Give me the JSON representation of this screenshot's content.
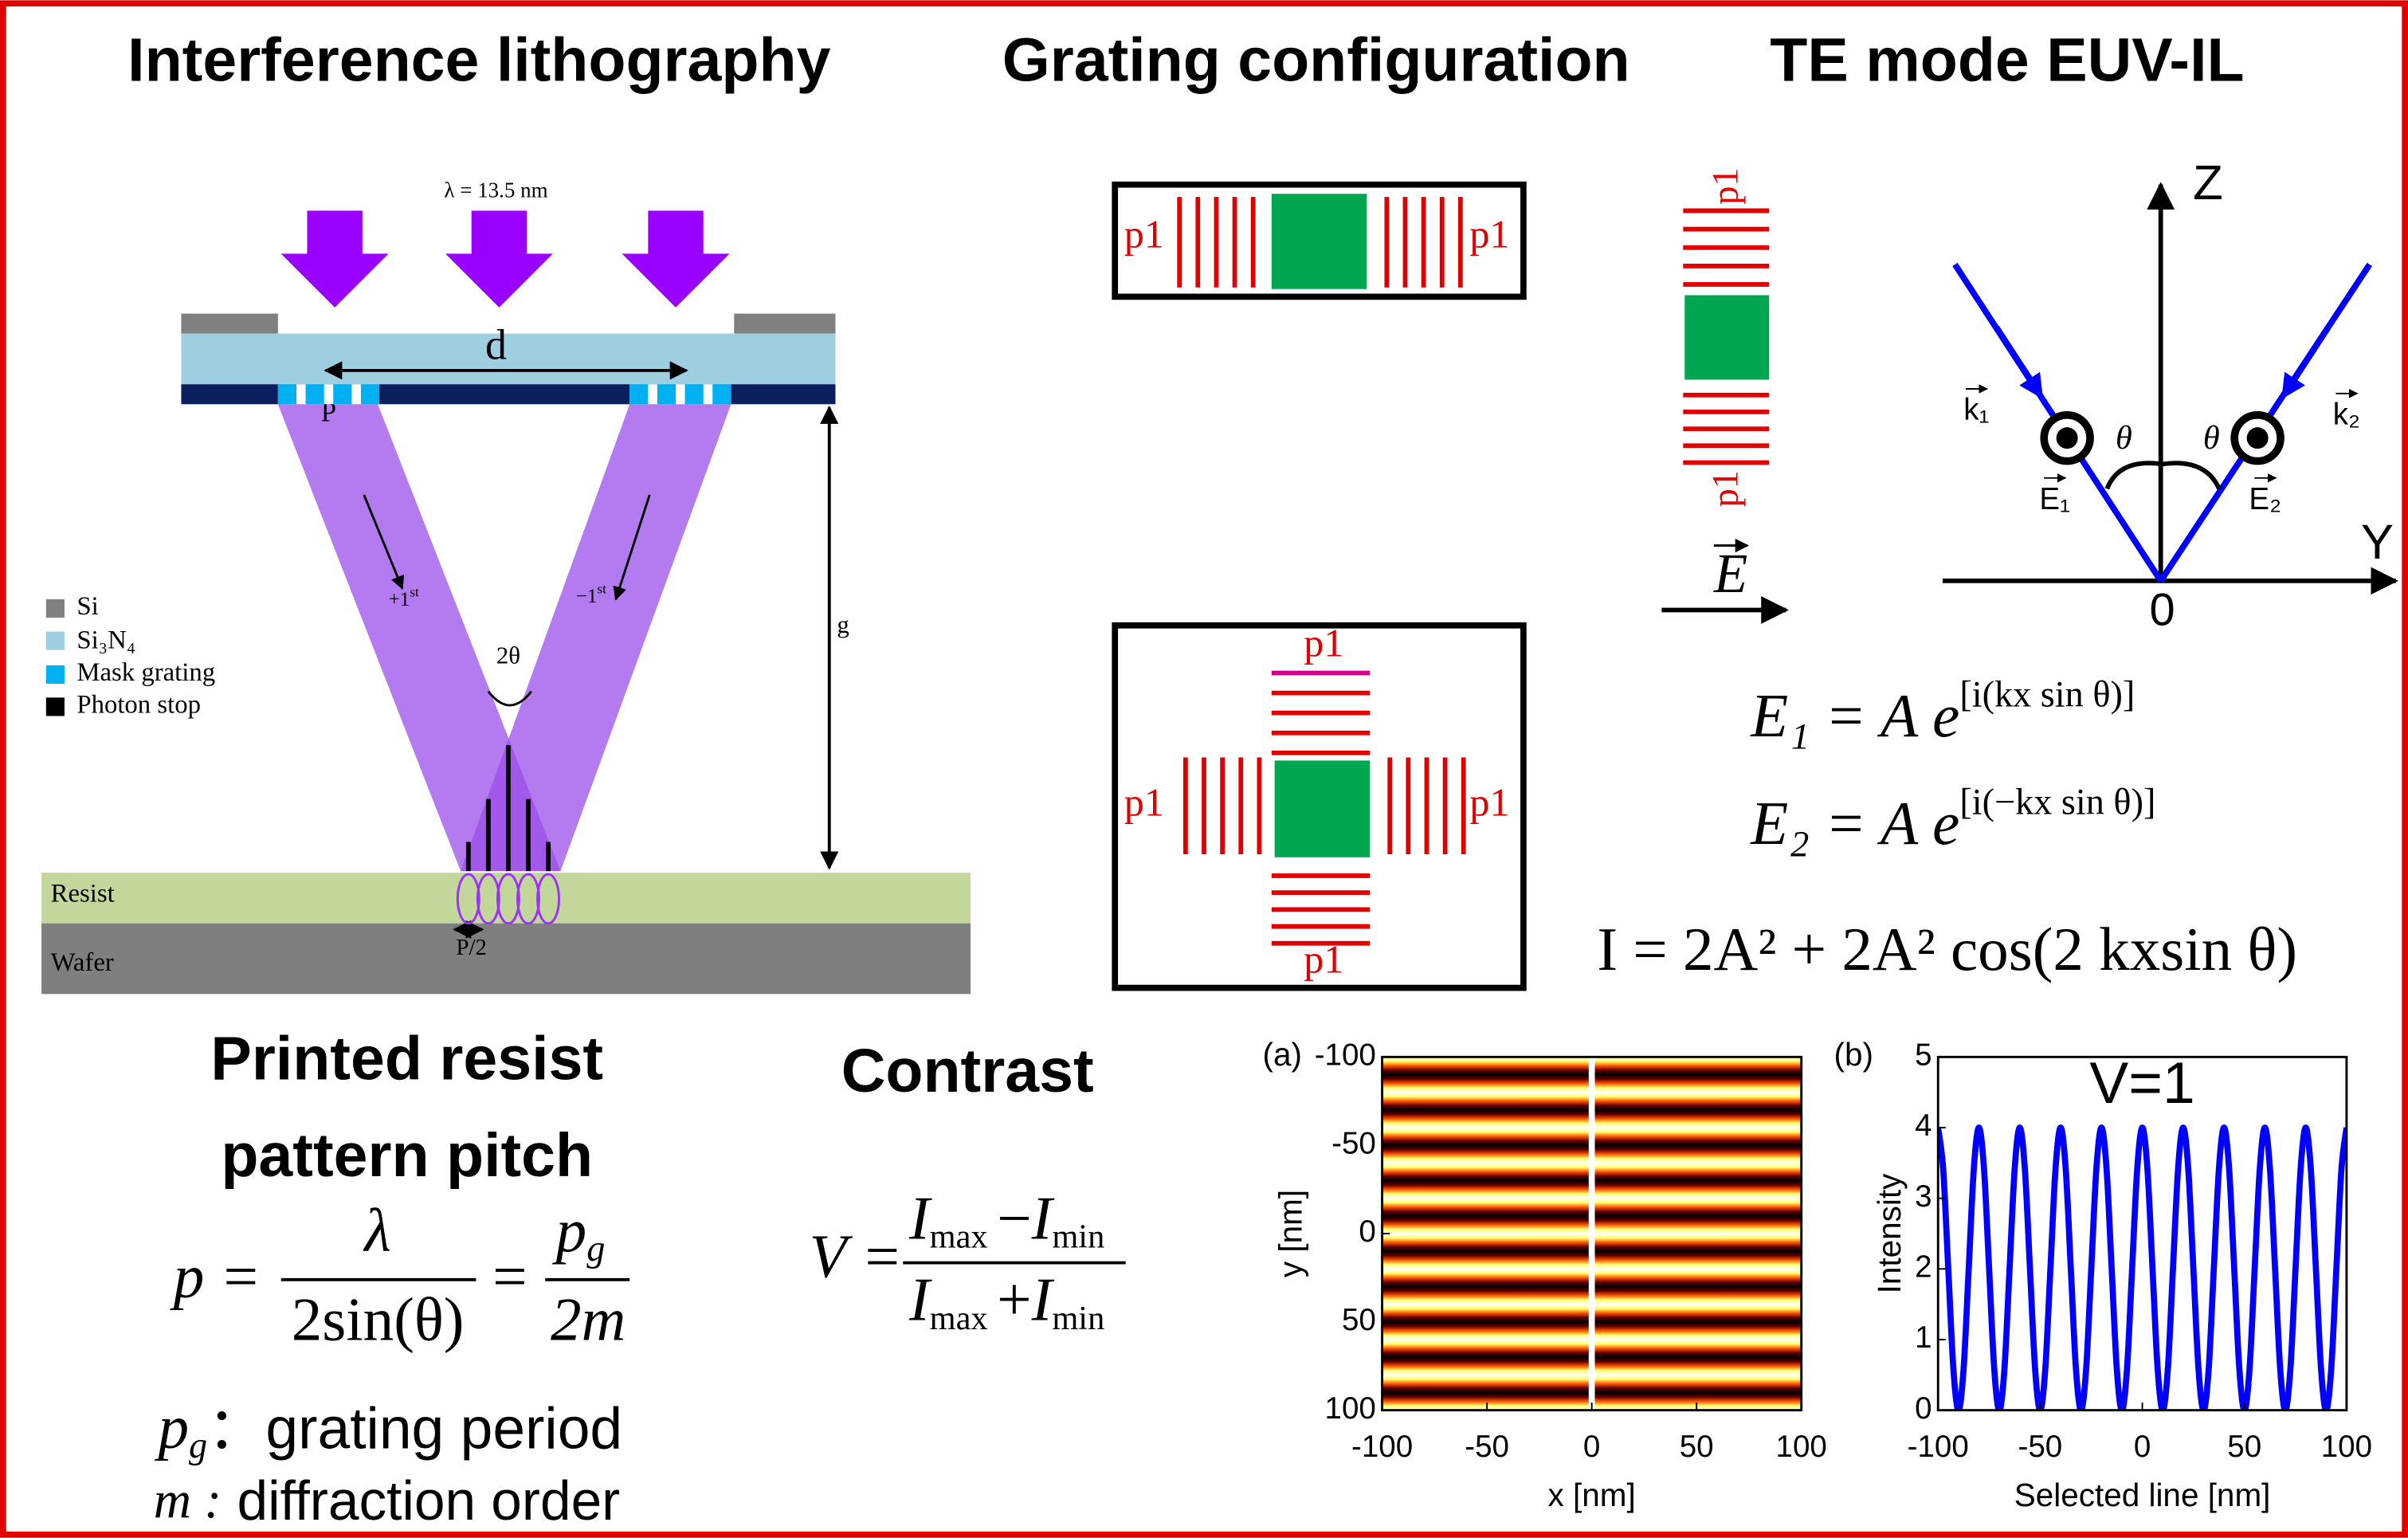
{
  "titles": [
    "Interference lithography",
    "Grating configuration",
    "TE mode EUV-IL"
  ],
  "lithography": {
    "wavelength": "λ = 13.5 nm",
    "mask_spacing": "d",
    "mask_pitch": "P",
    "gap": "g",
    "angle": "2θ",
    "orders": [
      {
        "base": "+1",
        "sup": "st"
      },
      {
        "base": "−1",
        "sup": "st"
      }
    ],
    "half_pitch": "P/2",
    "legend": [
      "Si",
      "Si₃N₄",
      "Mask grating",
      "Photon stop"
    ],
    "layers": [
      "Resist",
      "Wafer"
    ]
  },
  "grating_configuration": {
    "line_config": {
      "labels": [
        "p1",
        "p1"
      ]
    },
    "vertical_config": {
      "labels": [
        "p1",
        "p1"
      ]
    },
    "field": "E",
    "cross_config": {
      "labels": [
        "p1",
        "p1",
        "p1",
        "p1"
      ]
    }
  },
  "te_mode": {
    "axes": [
      "Z",
      "Y"
    ],
    "origin": "0",
    "wave_vectors": [
      "k₁",
      "k₂"
    ],
    "fields": [
      "E₁",
      "E₂"
    ],
    "angles": [
      "θ",
      "θ"
    ],
    "equations": [
      {
        "base": "E₁ = A e",
        "sup": "[i(kx sin θ)]"
      },
      {
        "base": "E₂ = A e",
        "sup": "[i(−kx sin θ)]"
      },
      {
        "base": "I = 2A² + 2A² cos(2 kxsin θ)"
      }
    ]
  },
  "pitch": {
    "title": [
      "Printed resist",
      "pattern pitch"
    ],
    "formula": {
      "lhs": "p =",
      "num1": "λ",
      "den1": "2sin(θ)",
      "eq": "=",
      "num2": {
        "base": "p",
        "sub": "g"
      },
      "den2": "2m"
    },
    "definitions": [
      {
        "symbol": "p",
        "sub": "g",
        "text": "：grating period"
      },
      {
        "symbol": "m :",
        "text": " diffraction order"
      }
    ]
  },
  "contrast": {
    "title": "Contrast",
    "formula": {
      "lhs": "V =",
      "numerator": [
        "I",
        "max",
        "−",
        "I",
        "min"
      ],
      "denominator": [
        "I",
        "max",
        "+",
        "I",
        "min"
      ]
    }
  },
  "chart_data": [
    {
      "type": "heatmap",
      "panel": "(a)",
      "xlabel": "x [nm]",
      "ylabel": "y [nm]",
      "xlim": [
        -100,
        100
      ],
      "ylim": [
        -100,
        100
      ],
      "y_inverted": true,
      "xticks": [
        -100,
        -50,
        0,
        50,
        100
      ],
      "yticks": [
        -100,
        -50,
        0,
        50,
        100
      ],
      "colormap": "hot"
    },
    {
      "type": "line",
      "panel": "(b)",
      "annotation": "V=1",
      "xlabel": "Selected line [nm]",
      "ylabel": "Intensity",
      "xlim": [
        -100,
        100
      ],
      "ylim": [
        0,
        5
      ],
      "xticks": [
        -100,
        -50,
        0,
        50,
        100
      ],
      "yticks": [
        0,
        1,
        2,
        3,
        4,
        5
      ],
      "x": [
        -100,
        -97.5,
        -95,
        -92.5,
        -90,
        -87.5,
        -85,
        -82.5,
        -80,
        -77.5,
        -75,
        -72.5,
        -70,
        -67.5,
        -65,
        -62.5,
        -60,
        -57.5,
        -55,
        -52.5,
        -50,
        -47.5,
        -45,
        -42.5,
        -40,
        -37.5,
        -35,
        -32.5,
        -30,
        -27.5,
        -25,
        -22.5,
        -20,
        -17.5,
        -15,
        -12.5,
        -10,
        -7.5,
        -5,
        -2.5,
        0,
        2.5,
        5,
        7.5,
        10,
        12.5,
        15,
        17.5,
        20,
        22.5,
        25,
        27.5,
        30,
        32.5,
        35,
        37.5,
        40,
        42.5,
        45,
        47.5,
        50,
        52.5,
        55,
        57.5,
        60,
        62.5,
        65,
        67.5,
        70,
        72.5,
        75,
        77.5,
        80,
        82.5,
        85,
        87.5,
        90,
        92.5,
        95,
        97.5,
        100
      ],
      "series": [
        {
          "color": "#0000ff",
          "values": [
            4,
            3.414,
            2,
            0.586,
            0,
            0.586,
            2,
            3.414,
            4,
            3.414,
            2,
            0.586,
            0,
            0.586,
            2,
            3.414,
            4,
            3.414,
            2,
            0.586,
            0,
            0.586,
            2,
            3.414,
            4,
            3.414,
            2,
            0.586,
            0,
            0.586,
            2,
            3.414,
            4,
            3.414,
            2,
            0.586,
            0,
            0.586,
            2,
            3.414,
            4,
            3.414,
            2,
            0.586,
            0,
            0.586,
            2,
            3.414,
            4,
            3.414,
            2,
            0.586,
            0,
            0.586,
            2,
            3.414,
            4,
            3.414,
            2,
            0.586,
            0,
            0.586,
            2,
            3.414,
            4,
            3.414,
            2,
            0.586,
            0,
            0.586,
            2,
            3.414,
            4,
            3.414,
            2,
            0.586,
            0,
            0.586,
            2,
            3.414,
            4
          ]
        }
      ]
    }
  ]
}
